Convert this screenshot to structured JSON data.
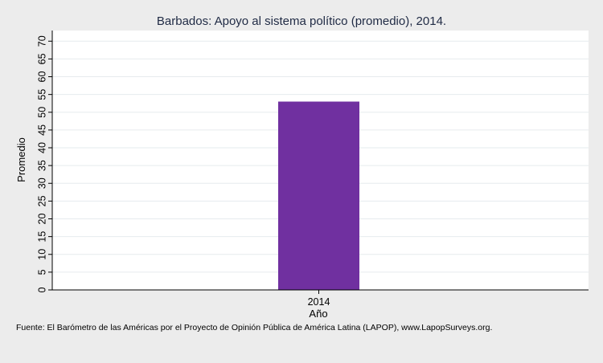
{
  "chart_data": {
    "type": "bar",
    "title": "Barbados: Apoyo al sistema político (promedio), 2014.",
    "xlabel": "Año",
    "ylabel": "Promedio",
    "categories": [
      "2014"
    ],
    "values": [
      53
    ],
    "ylim": [
      0,
      73
    ],
    "yticks": [
      "0",
      "5",
      "10",
      "15",
      "20",
      "25",
      "30",
      "35",
      "40",
      "45",
      "50",
      "55",
      "60",
      "65",
      "70"
    ],
    "bar_color": "#7030a0",
    "grid": true
  },
  "source_note": "Fuente: El Barómetro de las Américas por el Proyecto de Opinión Pública de América Latina (LAPOP), www.LapopSurveys.org."
}
